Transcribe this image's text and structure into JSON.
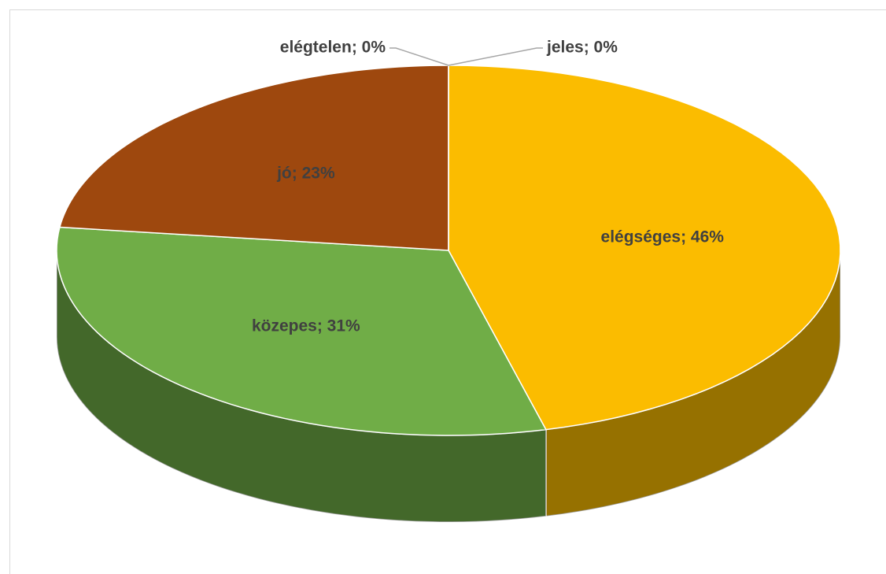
{
  "chart_data": {
    "type": "pie3d",
    "categories": [
      "jeles",
      "elégséges",
      "közepes",
      "jó",
      "elégtelen"
    ],
    "values": [
      0,
      46,
      31,
      23,
      0
    ],
    "value_labels": [
      "jeles; 0%",
      "elégséges; 46%",
      "közepes; 31%",
      "jó; 23%",
      "elégtelen; 0%"
    ],
    "colors": [
      "#4472c4",
      "#fbbc00",
      "#70ad47",
      "#9e480e",
      "#a5a5a5"
    ]
  }
}
